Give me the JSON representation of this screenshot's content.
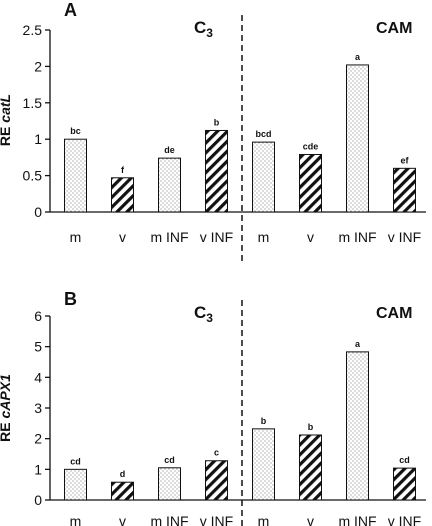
{
  "chart_data": [
    {
      "type": "bar",
      "panel_label": "A",
      "ylabel_prefix": "RE ",
      "ylabel_gene": "catL",
      "yticks": [
        "0",
        "0.5",
        "1",
        "1.5",
        "2",
        "2.5"
      ],
      "ylim": [
        0,
        2.5
      ],
      "categories": [
        "m",
        "v",
        "m INF",
        "v INF",
        "m",
        "v",
        "m INF",
        "v INF"
      ],
      "values": [
        1.0,
        0.47,
        0.74,
        1.12,
        0.96,
        0.79,
        2.02,
        0.6
      ],
      "letters": [
        "bc",
        "f",
        "de",
        "b",
        "bcd",
        "cde",
        "a",
        "ef"
      ],
      "patterns": [
        "dots",
        "hatch",
        "dots",
        "hatch",
        "dots",
        "hatch",
        "dots",
        "hatch"
      ],
      "group_left": {
        "base": "C",
        "sub": "3"
      },
      "group_right": "CAM",
      "grid": false
    },
    {
      "type": "bar",
      "panel_label": "B",
      "ylabel_prefix": "RE ",
      "ylabel_gene": "cAPX1",
      "yticks": [
        "0",
        "1",
        "2",
        "3",
        "4",
        "5",
        "6"
      ],
      "ylim": [
        0,
        6
      ],
      "categories": [
        "m",
        "v",
        "m INF",
        "v INF",
        "m",
        "v",
        "m INF",
        "v INF"
      ],
      "values": [
        1.0,
        0.58,
        1.05,
        1.28,
        2.32,
        2.12,
        4.83,
        1.04
      ],
      "letters": [
        "cd",
        "d",
        "cd",
        "c",
        "b",
        "b",
        "a",
        "cd"
      ],
      "patterns": [
        "dots",
        "hatch",
        "dots",
        "hatch",
        "dots",
        "hatch",
        "dots",
        "hatch"
      ],
      "group_left": {
        "base": "C",
        "sub": "3"
      },
      "group_right": "CAM",
      "grid": false
    }
  ]
}
